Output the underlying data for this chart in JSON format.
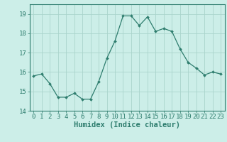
{
  "x": [
    0,
    1,
    2,
    3,
    4,
    5,
    6,
    7,
    8,
    9,
    10,
    11,
    12,
    13,
    14,
    15,
    16,
    17,
    18,
    19,
    20,
    21,
    22,
    23
  ],
  "y": [
    15.8,
    15.9,
    15.4,
    14.7,
    14.7,
    14.9,
    14.6,
    14.6,
    15.5,
    16.7,
    17.6,
    18.9,
    18.9,
    18.4,
    18.85,
    18.1,
    18.25,
    18.1,
    17.2,
    16.5,
    16.2,
    15.85,
    16.0,
    15.9
  ],
  "line_color": "#2e7d6e",
  "marker_color": "#2e7d6e",
  "bg_color": "#cceee8",
  "grid_color": "#aad4cc",
  "xlabel": "Humidex (Indice chaleur)",
  "xlabel_fontsize": 7.5,
  "tick_fontsize": 6.5,
  "ylim": [
    14,
    19.5
  ],
  "xlim": [
    -0.5,
    23.5
  ],
  "yticks": [
    14,
    15,
    16,
    17,
    18,
    19
  ],
  "xticks": [
    0,
    1,
    2,
    3,
    4,
    5,
    6,
    7,
    8,
    9,
    10,
    11,
    12,
    13,
    14,
    15,
    16,
    17,
    18,
    19,
    20,
    21,
    22,
    23
  ]
}
